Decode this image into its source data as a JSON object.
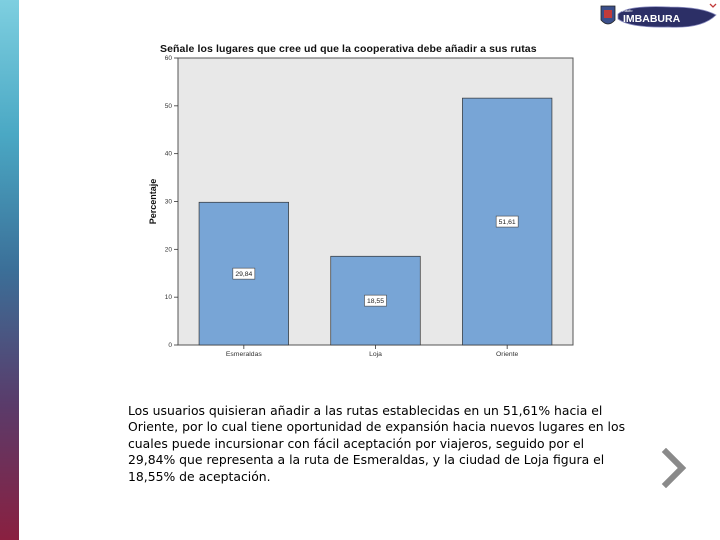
{
  "logo": {
    "small_text": "Radio",
    "brand": "IMBABURA"
  },
  "chart_data": {
    "type": "bar",
    "title": "Señale los lugares que cree ud que la cooperativa debe añadir a sus rutas",
    "xlabel": "",
    "ylabel": "Percentaje",
    "categories": [
      "Esmeraldas",
      "Loja",
      "Oriente"
    ],
    "values": [
      29.84,
      18.55,
      51.61
    ],
    "data_labels": [
      "29,84",
      "18,55",
      "51,61"
    ],
    "ylim": [
      0,
      60
    ],
    "yticks": [
      0,
      10,
      20,
      30,
      40,
      50,
      60
    ],
    "grid": false,
    "bar_color": "#78a5d6",
    "plot_bg": "#e8e8e8"
  },
  "caption": "Los usuarios quisieran añadir a las rutas establecidas en un 51,61% hacia el Oriente, por lo cual tiene oportunidad de expansión hacia nuevos lugares en los cuales puede incursionar con fácil aceptación por viajeros, seguido por el 29,84% que representa a la ruta de Esmeraldas, y la ciudad de Loja figura el 18,55% de aceptación."
}
